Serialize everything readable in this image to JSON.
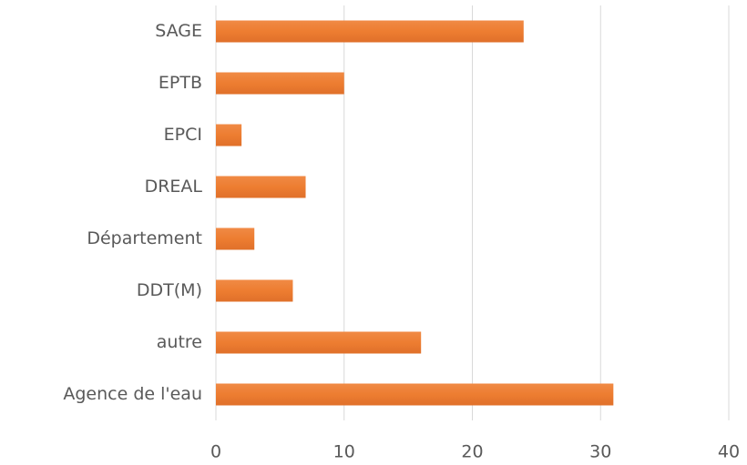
{
  "chart_data": {
    "type": "bar",
    "orientation": "horizontal",
    "categories": [
      "SAGE",
      "EPTB",
      "EPCI",
      "DREAL",
      "Département",
      "DDT(M)",
      "autre",
      "Agence de l'eau"
    ],
    "values": [
      24,
      10,
      2,
      7,
      3,
      6,
      16,
      31
    ],
    "color": "#ed7d31",
    "xlim": [
      0,
      40
    ],
    "xticks": [
      0,
      10,
      20,
      30,
      40
    ],
    "grid": true
  }
}
